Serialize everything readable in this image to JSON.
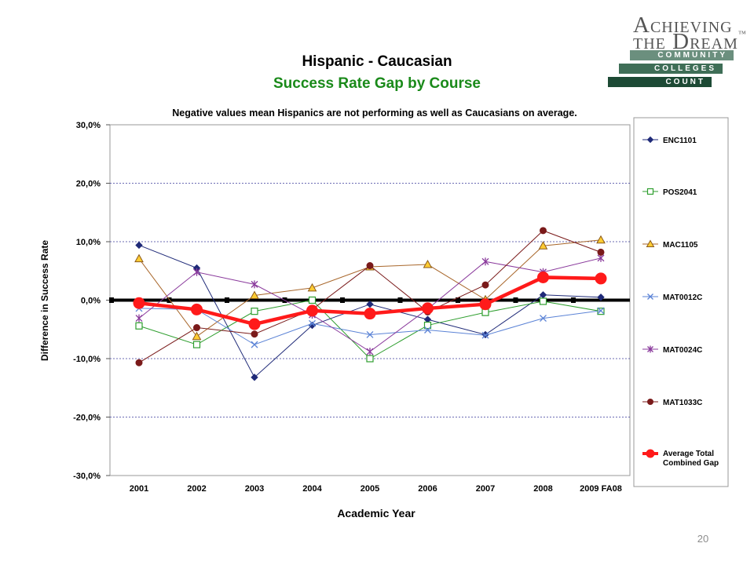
{
  "slide": {
    "title": "Hispanic - Caucasian",
    "subtitle": "Success Rate Gap by Course",
    "subtitle_color": "#1a8a1a",
    "page_number": "20"
  },
  "logo": {
    "line1": "Achieving",
    "line2": "the Dream",
    "trademark": "™",
    "bar1": "COMMUNITY",
    "bar2": "COLLEGES",
    "bar3": "COUNT",
    "bar1_color": "#6b8f7e",
    "bar2_color": "#3f6e57",
    "bar3_color": "#1d4a35"
  },
  "chart_data": {
    "type": "line",
    "title": "Negative values mean Hispanics are not performing as well as Caucasians on average.",
    "xlabel": "Academic Year",
    "ylabel": "Difference in Success Rate",
    "categories": [
      "2001",
      "2002",
      "2003",
      "2004",
      "2005",
      "2006",
      "2007",
      "2008",
      "2009 FA08"
    ],
    "ylim": [
      -30,
      30
    ],
    "yticks": [
      30,
      20,
      10,
      0,
      -10,
      -20,
      -30
    ],
    "ytick_labels": [
      "30,0%",
      "20,0%",
      "10,0%",
      "0,0%",
      "-10,0%",
      "-20,0%",
      "-30,0%"
    ],
    "grid": "horizontal dashed",
    "legend_position": "right",
    "series": [
      {
        "name": "ENC1101",
        "color": "#1f2a78",
        "marker": "diamond",
        "values": [
          9.4,
          5.5,
          -13.2,
          -4.3,
          -0.7,
          -3.3,
          -5.9,
          0.9,
          0.5
        ]
      },
      {
        "name": "POS2041",
        "color": "#2e9e2e",
        "marker": "square",
        "values": [
          -4.4,
          -7.6,
          -1.9,
          0.0,
          -10.0,
          -4.3,
          -2.1,
          -0.2,
          -1.9
        ]
      },
      {
        "name": "MAC1105",
        "color": "#a8662a",
        "marker": "triangle",
        "values": [
          7.1,
          -6.2,
          0.8,
          2.1,
          5.7,
          6.1,
          0.1,
          9.3,
          10.3
        ]
      },
      {
        "name": "MAT0012C",
        "color": "#5b83d6",
        "marker": "x",
        "values": [
          -1.4,
          -1.6,
          -7.6,
          -4.0,
          -5.9,
          -5.1,
          -6.0,
          -3.1,
          -1.8
        ]
      },
      {
        "name": "MAT0024C",
        "color": "#8a3a9c",
        "marker": "star",
        "values": [
          -3.1,
          4.8,
          2.7,
          -2.5,
          -8.8,
          -1.5,
          6.6,
          4.8,
          7.2
        ]
      },
      {
        "name": "MAT1033C",
        "color": "#7a1a1a",
        "marker": "circle",
        "values": [
          -10.7,
          -4.7,
          -5.8,
          -1.6,
          5.9,
          -2.0,
          2.6,
          11.9,
          8.2
        ]
      },
      {
        "name": "Average Total Combined Gap",
        "color": "#ff1a1a",
        "marker": "bigcircle",
        "bold": true,
        "values": [
          -0.5,
          -1.6,
          -4.1,
          -1.8,
          -2.3,
          -1.4,
          -0.7,
          3.9,
          3.7
        ]
      }
    ]
  }
}
